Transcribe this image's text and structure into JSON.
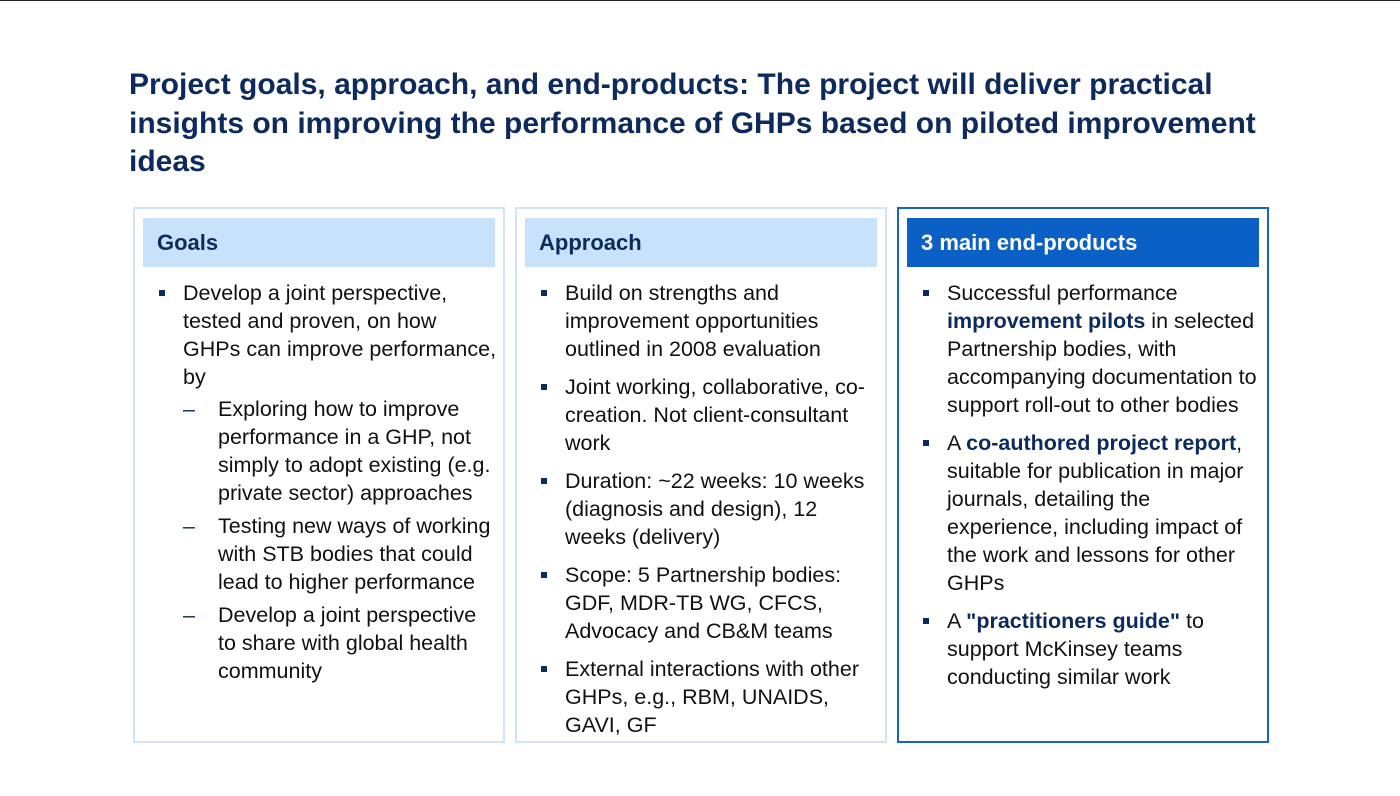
{
  "title": "Project goals, approach, and end-products:  The project will deliver practical insights on improving the performance of GHPs based on piloted improvement ideas",
  "colors": {
    "navy": "#0d2a5c",
    "light_header": "#c9e2fb",
    "dark_header": "#0b60c6",
    "light_border": "#cfe5f7",
    "dark_border": "#1565c0"
  },
  "goals": {
    "header": "Goals",
    "bullet_main": "Develop a joint perspective, tested and proven, on how GHPs can improve performance, by",
    "subs": [
      "Exploring how to improve performance in a GHP, not simply to adopt existing (e.g. private sector) approaches",
      "Testing new ways of working with STB bodies that could lead to higher performance",
      "Develop a joint perspective to share with global health community"
    ]
  },
  "approach": {
    "header": "Approach",
    "bullets": [
      "Build on strengths and improvement opportunities outlined in 2008 evaluation",
      "Joint working, collaborative, co-creation. Not client-consultant work",
      "Duration: ~22 weeks: 10 weeks (diagnosis and design), 12 weeks (delivery)",
      "Scope: 5 Partnership bodies: GDF, MDR-TB WG, CFCS, Advocacy and CB&M teams",
      "External interactions with other GHPs, e.g., RBM, UNAIDS, GAVI, GF"
    ]
  },
  "endproducts": {
    "header": "3 main end-products",
    "b1_pre": "Successful performance ",
    "b1_hl": "improvement pilots",
    "b1_post": " in selected Partnership bodies, with accompanying documentation to support roll-out to other bodies",
    "b2_pre": "A ",
    "b2_hl": "co-authored project report",
    "b2_post": ", suitable for publication in major journals, detailing the experience, including impact of the work and lessons for other GHPs",
    "b3_pre": "A ",
    "b3_hl": "\"practitioners guide\"",
    "b3_post": " to support McKinsey teams conducting similar work"
  }
}
